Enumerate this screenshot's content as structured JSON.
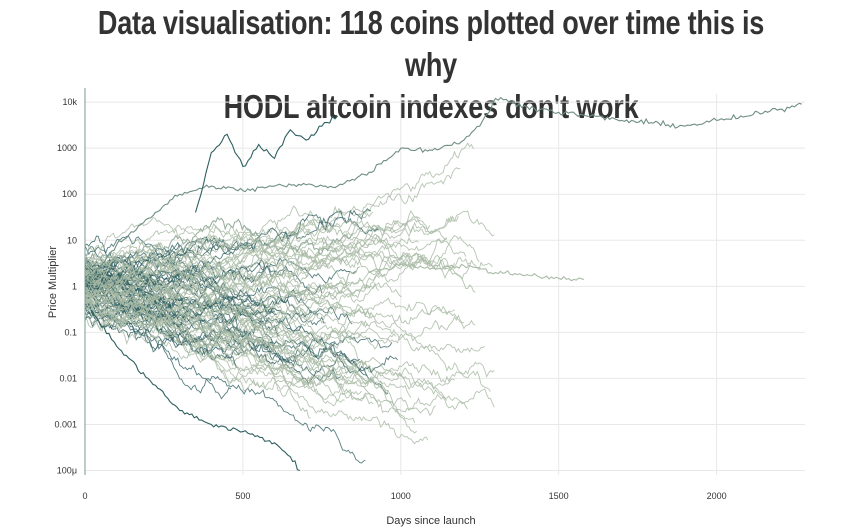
{
  "header": {
    "title_line1": "Data visualisation: 118 coins plotted over time this is why",
    "title_line2": "HODL altcoin indexes don't work"
  },
  "colors": {
    "dark_series": "#2f5f60",
    "light_series": "#a9bba6",
    "grid": "#e8e8e8",
    "axis": "#7a9a8c"
  },
  "chart_data": {
    "type": "line",
    "title": "Data visualisation: 118 coins plotted over time this is why HODL altcoin indexes don't work",
    "xlabel": "Days since launch",
    "ylabel": "Price Multiplier",
    "xlim": [
      0,
      2280
    ],
    "ylim": [
      8e-05,
      15000
    ],
    "yscale": "log",
    "grid": true,
    "x_ticks": [
      {
        "value": 0,
        "label": "0"
      },
      {
        "value": 500,
        "label": "500"
      },
      {
        "value": 1000,
        "label": "1000"
      },
      {
        "value": 1500,
        "label": "1500"
      },
      {
        "value": 2000,
        "label": "2000"
      }
    ],
    "y_ticks": [
      {
        "value": 10000,
        "label": "10k"
      },
      {
        "value": 1000,
        "label": "1000"
      },
      {
        "value": 100,
        "label": "100"
      },
      {
        "value": 10,
        "label": "10"
      },
      {
        "value": 1,
        "label": "1"
      },
      {
        "value": 0.1,
        "label": "0.1"
      },
      {
        "value": 0.01,
        "label": "0.01"
      },
      {
        "value": 0.001,
        "label": "0.001"
      },
      {
        "value": 0.0001,
        "label": "100μ"
      }
    ],
    "series_count": 118,
    "highlighted_series": [
      {
        "x": [
          0,
          100,
          200,
          300,
          400,
          500,
          600,
          700,
          800,
          900,
          1000,
          1100,
          1200,
          1250,
          1300,
          1350,
          1400,
          1500,
          1600,
          1700,
          1800,
          1900,
          2000,
          2100,
          2200,
          2270
        ],
        "y": [
          1,
          8,
          30,
          100,
          150,
          120,
          150,
          160,
          150,
          300,
          1000,
          900,
          1500,
          3000,
          12000,
          10000,
          8000,
          6000,
          5000,
          4000,
          3500,
          3000,
          4000,
          5000,
          7000,
          9000
        ]
      },
      {
        "x": [
          350,
          400,
          450,
          500,
          550,
          600,
          650,
          700,
          750,
          800
        ],
        "y": [
          40,
          800,
          2000,
          400,
          1200,
          600,
          2500,
          1500,
          3000,
          5000
        ]
      },
      {
        "x": [
          20,
          100,
          200,
          300,
          400,
          500,
          600,
          650,
          680
        ],
        "y": [
          0.3,
          0.05,
          0.01,
          0.002,
          0.001,
          0.0007,
          0.0004,
          0.0002,
          0.0001
        ]
      },
      {
        "x": [
          900,
          1000,
          1100,
          1200,
          1300,
          1400,
          1500,
          1580
        ],
        "y": [
          2,
          3,
          2.5,
          2.8,
          2,
          1.8,
          1.5,
          1.4
        ]
      }
    ]
  }
}
